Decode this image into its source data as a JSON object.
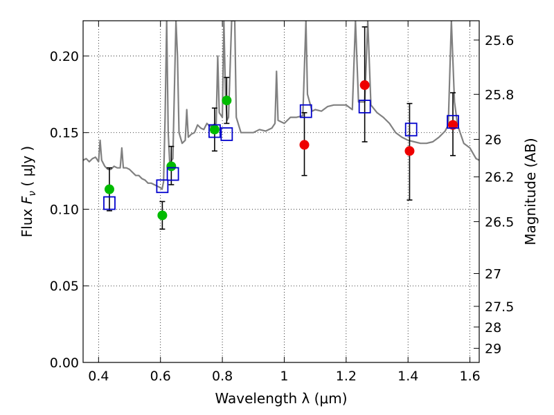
{
  "chart_data": {
    "type": "scatter",
    "title": "",
    "xlabel": "Wavelength  λ (μm)",
    "ylabel_parts": [
      "Flux  ",
      "F",
      "ν",
      "  ( μJy )"
    ],
    "ylabel_right": "Magnitude (AB)",
    "xlim": [
      0.35,
      1.63
    ],
    "ylim": [
      0.0,
      0.223
    ],
    "grid": "dotted",
    "x_ticks": [
      0.4,
      0.6,
      0.8,
      1.0,
      1.2,
      1.4,
      1.6
    ],
    "x_tick_labels": [
      "0.4",
      "0.6",
      "0.8",
      "1",
      "1.2",
      "1.4",
      "1.6"
    ],
    "y_ticks": [
      0.0,
      0.05,
      0.1,
      0.15,
      0.2
    ],
    "y_tick_labels": [
      "0.00",
      "0.05",
      "0.10",
      "0.15",
      "0.20"
    ],
    "right_axis_ticks": [
      {
        "label": "25.6",
        "flux": 0.2104
      },
      {
        "label": "25.8",
        "flux": 0.175
      },
      {
        "label": "26",
        "flux": 0.1456
      },
      {
        "label": "26.2",
        "flux": 0.1211
      },
      {
        "label": "26.5",
        "flux": 0.0919
      },
      {
        "label": "27",
        "flux": 0.058
      },
      {
        "label": "27.5",
        "flux": 0.0366
      },
      {
        "label": "28",
        "flux": 0.0231
      },
      {
        "label": "29",
        "flux": 0.0092
      }
    ],
    "series": [
      {
        "marker": "filled-circle",
        "color": "#00bb00",
        "points": [
          {
            "x": 0.435,
            "y": 0.113,
            "yerr_low": 0.099,
            "yerr_high": 0.127
          },
          {
            "x": 0.606,
            "y": 0.096,
            "yerr_low": 0.087,
            "yerr_high": 0.105
          },
          {
            "x": 0.635,
            "y": 0.128,
            "yerr_low": 0.116,
            "yerr_high": 0.141
          },
          {
            "x": 0.775,
            "y": 0.152,
            "yerr_low": 0.138,
            "yerr_high": 0.166
          },
          {
            "x": 0.814,
            "y": 0.171,
            "yerr_low": 0.156,
            "yerr_high": 0.186
          }
        ]
      },
      {
        "marker": "filled-circle",
        "color": "#ee0000",
        "points": [
          {
            "x": 1.065,
            "y": 0.142,
            "yerr_low": 0.122,
            "yerr_high": 0.163
          },
          {
            "x": 1.26,
            "y": 0.181,
            "yerr_low": 0.144,
            "yerr_high": 0.219
          },
          {
            "x": 1.405,
            "y": 0.138,
            "yerr_low": 0.106,
            "yerr_high": 0.169
          },
          {
            "x": 1.545,
            "y": 0.155,
            "yerr_low": 0.135,
            "yerr_high": 0.176
          }
        ]
      },
      {
        "marker": "open-square",
        "color": "#0000cc",
        "points": [
          {
            "x": 0.435,
            "y": 0.104
          },
          {
            "x": 0.606,
            "y": 0.115
          },
          {
            "x": 0.64,
            "y": 0.123
          },
          {
            "x": 0.775,
            "y": 0.151
          },
          {
            "x": 0.814,
            "y": 0.149
          },
          {
            "x": 1.07,
            "y": 0.164
          },
          {
            "x": 1.26,
            "y": 0.167
          },
          {
            "x": 1.41,
            "y": 0.152
          },
          {
            "x": 1.545,
            "y": 0.157
          }
        ]
      },
      {
        "type": "line",
        "color": "#808080",
        "points": [
          [
            0.35,
            0.132
          ],
          [
            0.36,
            0.133
          ],
          [
            0.37,
            0.131
          ],
          [
            0.38,
            0.133
          ],
          [
            0.39,
            0.134
          ],
          [
            0.4,
            0.131
          ],
          [
            0.405,
            0.145
          ],
          [
            0.41,
            0.132
          ],
          [
            0.42,
            0.128
          ],
          [
            0.43,
            0.126
          ],
          [
            0.44,
            0.126
          ],
          [
            0.45,
            0.128
          ],
          [
            0.46,
            0.127
          ],
          [
            0.47,
            0.127
          ],
          [
            0.475,
            0.14
          ],
          [
            0.48,
            0.127
          ],
          [
            0.49,
            0.127
          ],
          [
            0.5,
            0.126
          ],
          [
            0.51,
            0.124
          ],
          [
            0.52,
            0.122
          ],
          [
            0.53,
            0.122
          ],
          [
            0.54,
            0.12
          ],
          [
            0.55,
            0.119
          ],
          [
            0.56,
            0.117
          ],
          [
            0.57,
            0.117
          ],
          [
            0.58,
            0.116
          ],
          [
            0.59,
            0.115
          ],
          [
            0.6,
            0.114
          ],
          [
            0.605,
            0.113
          ],
          [
            0.61,
            0.118
          ],
          [
            0.615,
            0.16
          ],
          [
            0.62,
            0.223
          ],
          [
            0.625,
            0.15
          ],
          [
            0.63,
            0.13
          ],
          [
            0.64,
            0.133
          ],
          [
            0.65,
            0.223
          ],
          [
            0.655,
            0.2
          ],
          [
            0.66,
            0.15
          ],
          [
            0.67,
            0.143
          ],
          [
            0.68,
            0.145
          ],
          [
            0.685,
            0.165
          ],
          [
            0.69,
            0.147
          ],
          [
            0.7,
            0.149
          ],
          [
            0.71,
            0.15
          ],
          [
            0.72,
            0.155
          ],
          [
            0.73,
            0.153
          ],
          [
            0.74,
            0.152
          ],
          [
            0.75,
            0.156
          ],
          [
            0.76,
            0.154
          ],
          [
            0.77,
            0.155
          ],
          [
            0.78,
            0.156
          ],
          [
            0.785,
            0.2
          ],
          [
            0.79,
            0.163
          ],
          [
            0.8,
            0.16
          ],
          [
            0.805,
            0.223
          ],
          [
            0.81,
            0.175
          ],
          [
            0.815,
            0.158
          ],
          [
            0.82,
            0.16
          ],
          [
            0.83,
            0.223
          ],
          [
            0.84,
            0.223
          ],
          [
            0.845,
            0.16
          ],
          [
            0.86,
            0.15
          ],
          [
            0.88,
            0.15
          ],
          [
            0.9,
            0.15
          ],
          [
            0.92,
            0.152
          ],
          [
            0.94,
            0.151
          ],
          [
            0.96,
            0.153
          ],
          [
            0.97,
            0.156
          ],
          [
            0.975,
            0.19
          ],
          [
            0.98,
            0.158
          ],
          [
            1.0,
            0.156
          ],
          [
            1.02,
            0.16
          ],
          [
            1.04,
            0.16
          ],
          [
            1.06,
            0.161
          ],
          [
            1.07,
            0.223
          ],
          [
            1.075,
            0.175
          ],
          [
            1.09,
            0.164
          ],
          [
            1.1,
            0.165
          ],
          [
            1.12,
            0.164
          ],
          [
            1.14,
            0.167
          ],
          [
            1.16,
            0.168
          ],
          [
            1.18,
            0.168
          ],
          [
            1.2,
            0.168
          ],
          [
            1.22,
            0.165
          ],
          [
            1.23,
            0.223
          ],
          [
            1.24,
            0.17
          ],
          [
            1.26,
            0.17
          ],
          [
            1.27,
            0.223
          ],
          [
            1.28,
            0.168
          ],
          [
            1.3,
            0.163
          ],
          [
            1.32,
            0.16
          ],
          [
            1.34,
            0.156
          ],
          [
            1.36,
            0.15
          ],
          [
            1.38,
            0.147
          ],
          [
            1.4,
            0.145
          ],
          [
            1.42,
            0.144
          ],
          [
            1.44,
            0.143
          ],
          [
            1.46,
            0.143
          ],
          [
            1.48,
            0.144
          ],
          [
            1.5,
            0.147
          ],
          [
            1.52,
            0.151
          ],
          [
            1.53,
            0.155
          ],
          [
            1.54,
            0.223
          ],
          [
            1.55,
            0.17
          ],
          [
            1.56,
            0.155
          ],
          [
            1.58,
            0.143
          ],
          [
            1.6,
            0.14
          ],
          [
            1.62,
            0.133
          ],
          [
            1.63,
            0.132
          ]
        ]
      }
    ]
  }
}
